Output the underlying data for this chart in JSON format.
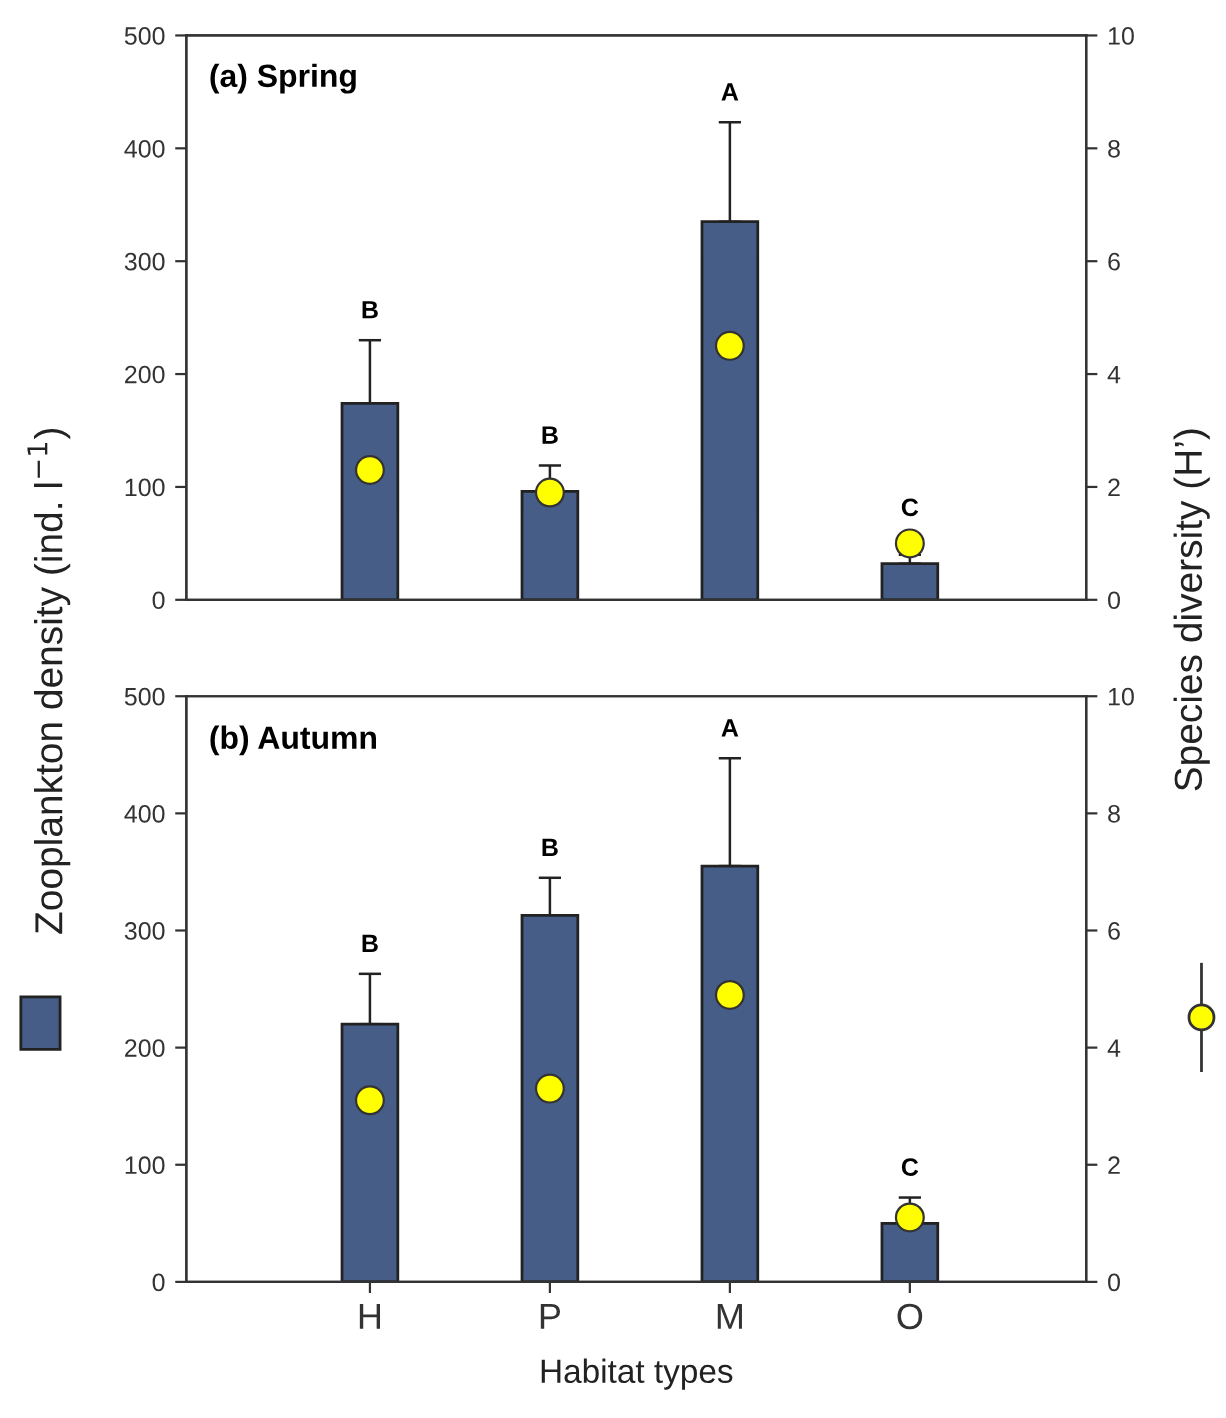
{
  "chart_data": [
    {
      "type": "bar",
      "title": "(a) Spring",
      "ylabel": "Zooplankton density (ind. l$^{−1}$)",
      "y2label": "Species diversity (H’)",
      "categories": [
        "H",
        "P",
        "M",
        "O"
      ],
      "series": [
        {
          "color": "#455d87",
          "values": [
            174,
            96,
            335,
            32
          ],
          "errors": [
            [
              174,
              230
            ],
            [
              96,
              119
            ],
            [
              335,
              423
            ],
            [
              32,
              40
            ]
          ]
        },
        {
          "type": "scatter",
          "axis": "y2",
          "color": "#ffff00",
          "marker": "circle",
          "values": [
            2.3,
            1.9,
            4.5,
            1.0
          ]
        }
      ],
      "annotations": [
        {
          "text": "B",
          "x": "H",
          "y": 230
        },
        {
          "text": "B",
          "x": "P",
          "y": 119
        },
        {
          "text": "A",
          "x": "M",
          "y": 423
        },
        {
          "text": "C",
          "x": "O",
          "y": 55
        }
      ],
      "ylim": [
        0,
        500
      ],
      "yticks": [
        0,
        100,
        200,
        300,
        400,
        500
      ],
      "y2lim": [
        0,
        10
      ],
      "y2ticks": [
        0,
        2,
        4,
        6,
        8,
        10
      ],
      "tick_labels": "y",
      "grid": false
    },
    {
      "type": "bar",
      "title": "(b) Autumn",
      "xlabel": "Habitat types",
      "categories": [
        "H",
        "P",
        "M",
        "O"
      ],
      "series": [
        {
          "color": "#455d87",
          "values": [
            220,
            313,
            355,
            50
          ],
          "errors": [
            [
              220,
              263
            ],
            [
              313,
              345
            ],
            [
              355,
              447
            ],
            [
              50,
              72
            ]
          ]
        },
        {
          "type": "scatter",
          "axis": "y2",
          "color": "#ffff00",
          "marker": "circle",
          "values": [
            3.1,
            3.3,
            4.9,
            1.1
          ]
        }
      ],
      "annotations": [
        {
          "text": "B",
          "x": "H",
          "y": 263
        },
        {
          "text": "B",
          "x": "P",
          "y": 345
        },
        {
          "text": "A",
          "x": "M",
          "y": 447
        },
        {
          "text": "C",
          "x": "O",
          "y": 72
        }
      ],
      "ylim": [
        0,
        500
      ],
      "yticks": [
        0,
        100,
        200,
        300,
        400,
        500
      ],
      "y2lim": [
        0,
        10
      ],
      "y2ticks": [
        0,
        2,
        4,
        6,
        8,
        10
      ],
      "grid": false
    }
  ]
}
